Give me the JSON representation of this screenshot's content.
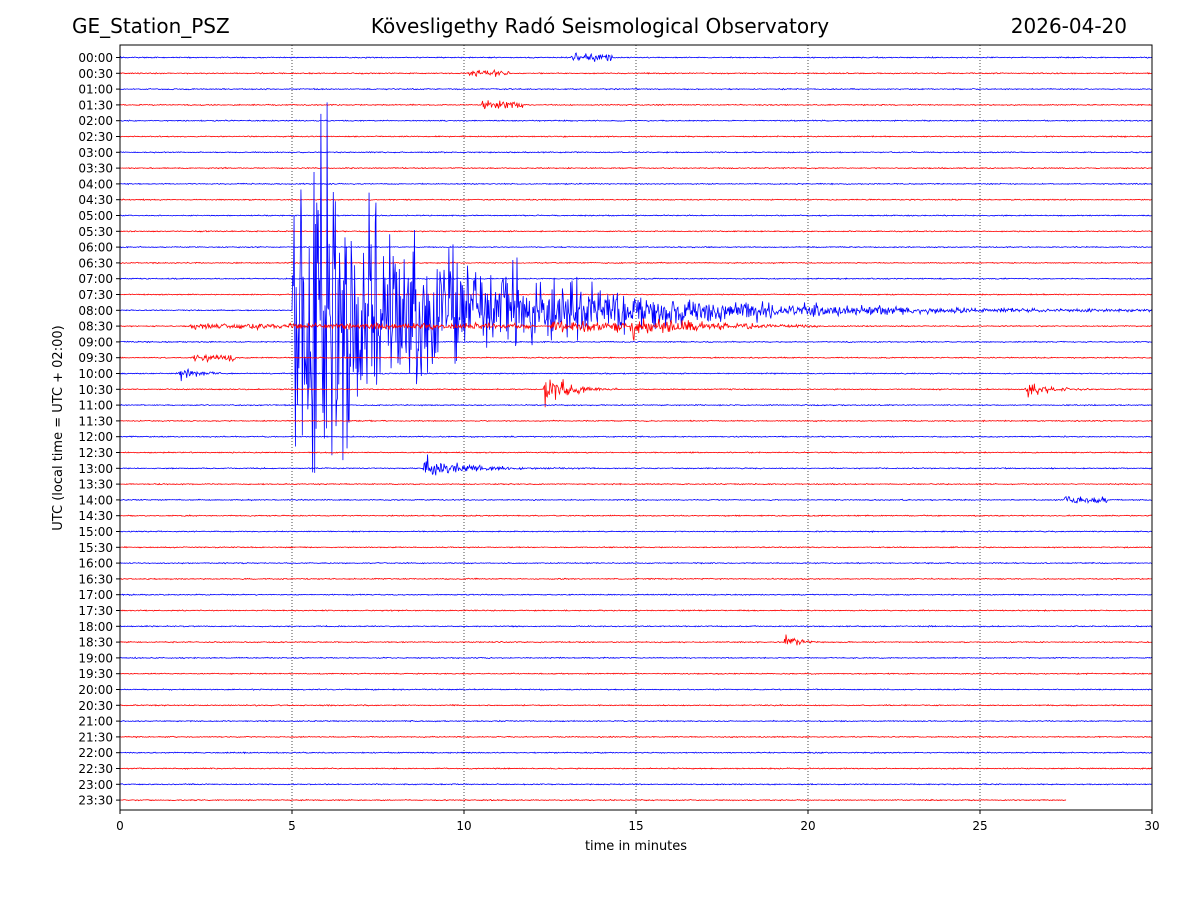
{
  "header": {
    "station": "GE_Station_PSZ",
    "title": "Kövesligethy Radó Seismological Observatory",
    "date": "2026-04-20"
  },
  "chart_data": {
    "type": "line",
    "title": "Kövesligethy Radó Seismological Observatory",
    "xlabel": "time in minutes",
    "ylabel": "UTC (local time = UTC + 02:00)",
    "xlim": [
      0,
      30
    ],
    "x_ticks": [
      "0",
      "5",
      "10",
      "15",
      "20",
      "25",
      "30"
    ],
    "vertical_gridlines_minutes": [
      5,
      10,
      15,
      20,
      25
    ],
    "grid": "vertical dotted",
    "trace_colors": [
      "#0000ff",
      "#ff0000"
    ],
    "rows": [
      "00:00",
      "00:30",
      "01:00",
      "01:30",
      "02:00",
      "02:30",
      "03:00",
      "03:30",
      "04:00",
      "04:30",
      "05:00",
      "05:30",
      "06:00",
      "06:30",
      "07:00",
      "07:30",
      "08:00",
      "08:30",
      "09:00",
      "09:30",
      "10:00",
      "10:30",
      "11:00",
      "11:30",
      "12:00",
      "12:30",
      "13:00",
      "13:30",
      "14:00",
      "14:30",
      "15:00",
      "15:30",
      "16:00",
      "16:30",
      "17:00",
      "17:30",
      "18:00",
      "18:30",
      "19:00",
      "19:30",
      "20:00",
      "20:30",
      "21:00",
      "21:30",
      "22:00",
      "22:30",
      "23:00",
      "23:30"
    ],
    "last_row_end_minute": 27.5,
    "events": [
      {
        "row": "00:00",
        "start_min": 13.1,
        "duration_min": 1.2,
        "amplitude": 0.35
      },
      {
        "row": "00:30",
        "start_min": 10.1,
        "duration_min": 1.2,
        "amplitude": 0.25
      },
      {
        "row": "01:30",
        "start_min": 10.5,
        "duration_min": 1.2,
        "amplitude": 0.45
      },
      {
        "row": "08:00",
        "start_min": 5.0,
        "duration_min": 25.0,
        "amplitude": 18,
        "decay": 4.5
      },
      {
        "row": "08:00",
        "start_min": 5.4,
        "duration_min": 1.4,
        "amplitude": 10,
        "decay": 1.2
      },
      {
        "row": "08:30",
        "start_min": 2.0,
        "duration_min": 10.0,
        "amplitude": 0.25
      },
      {
        "row": "08:30",
        "start_min": 12.5,
        "duration_min": 2.2,
        "amplitude": 0.55
      },
      {
        "row": "08:30",
        "start_min": 14.8,
        "duration_min": 5.5,
        "amplitude": 1.2,
        "decay": 2.0
      },
      {
        "row": "09:30",
        "start_min": 2.1,
        "duration_min": 1.3,
        "amplitude": 0.3
      },
      {
        "row": "10:00",
        "start_min": 1.7,
        "duration_min": 1.3,
        "amplitude": 0.8,
        "decay": 0.5
      },
      {
        "row": "10:30",
        "start_min": 12.3,
        "duration_min": 2.2,
        "amplitude": 2.3,
        "decay": 0.6
      },
      {
        "row": "10:30",
        "start_min": 26.3,
        "duration_min": 2.0,
        "amplitude": 1.3,
        "decay": 0.5
      },
      {
        "row": "13:00",
        "start_min": 8.8,
        "duration_min": 5.0,
        "amplitude": 1.3,
        "decay": 1.0
      },
      {
        "row": "14:00",
        "start_min": 27.4,
        "duration_min": 1.3,
        "amplitude": 0.3
      },
      {
        "row": "18:30",
        "start_min": 19.3,
        "duration_min": 1.0,
        "amplitude": 0.9,
        "decay": 0.3
      }
    ]
  }
}
